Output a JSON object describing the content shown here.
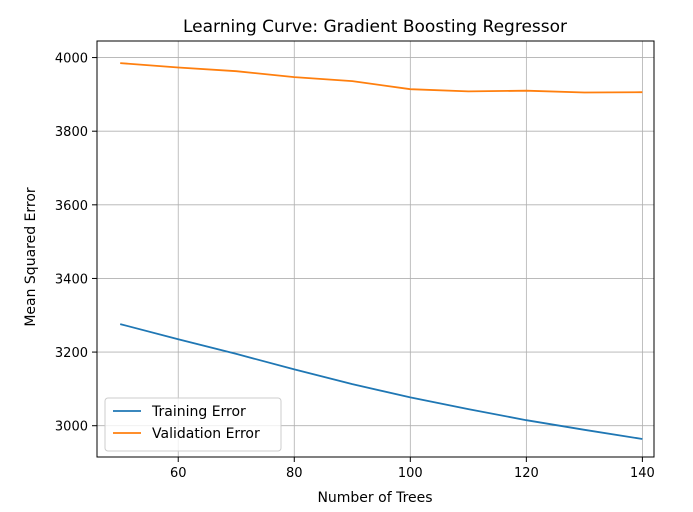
{
  "chart_data": {
    "type": "line",
    "title": "Learning Curve: Gradient Boosting Regressor",
    "xlabel": "Number of Trees",
    "ylabel": "Mean Squared Error",
    "xlim": [
      46,
      142
    ],
    "ylim": [
      2915,
      4045
    ],
    "xticks": [
      60,
      80,
      100,
      120,
      140
    ],
    "yticks": [
      3000,
      3200,
      3400,
      3600,
      3800,
      4000
    ],
    "grid": true,
    "legend_position": "lower-left",
    "x": [
      50,
      60,
      70,
      80,
      90,
      100,
      110,
      120,
      130,
      140
    ],
    "series": [
      {
        "name": "Training Error",
        "color": "#1f77b4",
        "values": [
          3276,
          3235,
          3195,
          3153,
          3113,
          3077,
          3045,
          3015,
          2989,
          2964
        ]
      },
      {
        "name": "Validation Error",
        "color": "#ff7f0e",
        "values": [
          3985,
          3973,
          3963,
          3947,
          3936,
          3914,
          3908,
          3910,
          3905,
          3906
        ]
      }
    ]
  }
}
